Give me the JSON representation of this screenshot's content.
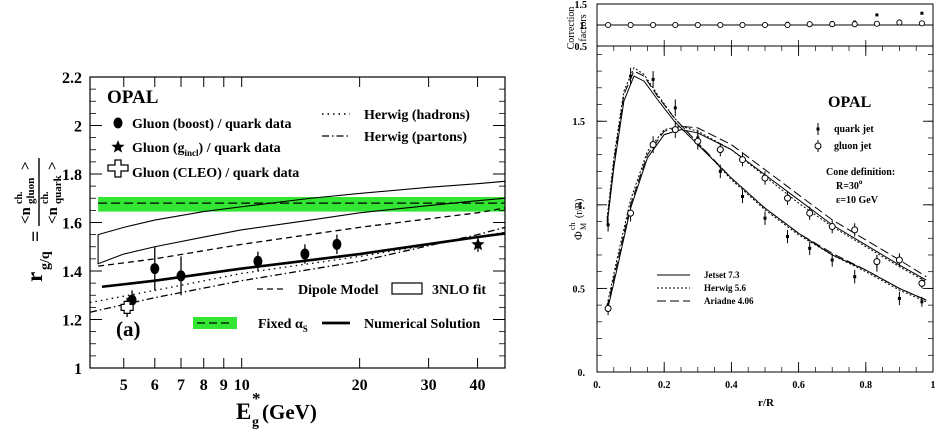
{
  "left_legend": {
    "opal": "OPAL",
    "boost": "Gluon (boost)  / quark data",
    "incl_prefix": "Gluon (g",
    "incl_sub": "incl",
    "incl_suffix": ")  / quark data",
    "cleo": "Gluon (CLEO) / quark data",
    "herwig_hadrons": "Herwig (hadrons)",
    "herwig_partons": "Herwig (partons)",
    "dipole": "Dipole Model",
    "nlo3": "3NLO fit",
    "fixed_prefix": "Fixed α",
    "fixed_sub": "S",
    "numerical": "Numerical Solution",
    "panel": "(a)"
  },
  "left_axis": {
    "y_main": "r",
    "y_sub": "g/q",
    "y_eq": "=",
    "num_main": "<n",
    "num_sup": "ch.",
    "num_sub": "gluon",
    "num_close": ">",
    "den_main": "<n",
    "den_sup": "ch.",
    "den_sub": "quark",
    "den_close": ">",
    "x_main": "E",
    "x_sup": "*",
    "x_sub": "g",
    "x_unit": "(GeV)"
  },
  "right_legend": {
    "opal": "OPAL",
    "quark": "quark jet",
    "gluon": "gluon jet",
    "cone_title": "Cone definition:",
    "cone_r": "R=30",
    "cone_r_sup": "o",
    "cone_e": "ε=10 GeV",
    "jetset": "Jetset 7.3",
    "herwig": "Herwig 5.6",
    "ariadne": "Ariadne 4.06"
  },
  "right_axis": {
    "corr_line1": "Correction",
    "corr_line2": "factors",
    "y_main": "Φ",
    "y_sup": "ch",
    "y_sub": "M",
    "y_rest": "(r/R)",
    "x_label": "r/R"
  },
  "chart_data": [
    {
      "type": "scatter",
      "title": "",
      "xlabel": "E*g (GeV)",
      "ylabel": "r g/q = <n ch. gluon> / <n ch. quark>",
      "x_scale": "log",
      "xlim": [
        4.1,
        47
      ],
      "ylim": [
        1.0,
        2.2
      ],
      "x_ticks": [
        5,
        6,
        7,
        8,
        9,
        10,
        20,
        30,
        40
      ],
      "x_tick_labels": [
        "5",
        "6",
        "7",
        "8",
        "9",
        "10",
        "20",
        "30",
        "40"
      ],
      "y_ticks": [
        1,
        1.2,
        1.4,
        1.6,
        1.8,
        2,
        2.2
      ],
      "y_tick_labels": [
        "1",
        "1.2",
        "1.4",
        "1.6",
        "1.8",
        "2",
        "2.2"
      ],
      "legend_position": "top-left",
      "series": [
        {
          "name": "Gluon (boost)  / quark data",
          "style": "filled-circle",
          "x": [
            5.25,
            6.0,
            7.0,
            11.0,
            14.5,
            17.5
          ],
          "y": [
            1.28,
            1.41,
            1.38,
            1.44,
            1.47,
            1.51
          ],
          "yerr": [
            0.04,
            0.09,
            0.08,
            0.04,
            0.04,
            0.04
          ]
        },
        {
          "name": "Gluon (gincl)  / quark data",
          "style": "star",
          "x": [
            40.1
          ],
          "y": [
            1.509
          ],
          "yerr": [
            0.03
          ]
        },
        {
          "name": "Gluon (CLEO) / quark data",
          "style": "open-cross",
          "x": [
            5.1
          ],
          "y": [
            1.25
          ],
          "yerr": [
            0.04
          ]
        },
        {
          "name": "Herwig (hadrons)",
          "style": "dotted",
          "x": [
            4.1,
            6,
            10,
            20,
            40,
            47
          ],
          "y": [
            1.27,
            1.32,
            1.39,
            1.46,
            1.54,
            1.56
          ]
        },
        {
          "name": "Herwig (partons)",
          "style": "dash-dot",
          "x": [
            4.1,
            6,
            10,
            20,
            40,
            47
          ],
          "y": [
            1.23,
            1.29,
            1.36,
            1.44,
            1.55,
            1.58
          ]
        },
        {
          "name": "Dipole Model",
          "style": "dashed",
          "x": [
            4.3,
            6,
            10,
            20,
            40,
            47
          ],
          "y": [
            1.42,
            1.45,
            1.51,
            1.58,
            1.64,
            1.66
          ]
        },
        {
          "name": "Fixed αS",
          "style": "green-band",
          "x": [
            4.3,
            47
          ],
          "y": [
            1.68,
            1.68
          ],
          "y_low": [
            1.645,
            1.645
          ],
          "y_high": [
            1.705,
            1.705
          ]
        },
        {
          "name": "Numerical Solution",
          "style": "thick-solid",
          "x": [
            4.4,
            6,
            10,
            20,
            40,
            47
          ],
          "y": [
            1.335,
            1.36,
            1.41,
            1.47,
            1.54,
            1.555
          ]
        },
        {
          "name": "3NLO fit",
          "style": "outline-band",
          "x": [
            4.3,
            5,
            6,
            8,
            10,
            15,
            20,
            30,
            40,
            47
          ],
          "y_low": [
            1.43,
            1.47,
            1.5,
            1.54,
            1.57,
            1.61,
            1.64,
            1.67,
            1.69,
            1.7
          ],
          "y_high": [
            1.55,
            1.58,
            1.61,
            1.645,
            1.665,
            1.7,
            1.72,
            1.745,
            1.76,
            1.77
          ]
        }
      ]
    },
    {
      "type": "line",
      "title": "",
      "xlabel": "r/R",
      "ylabel": "Φ ch M (r/R)",
      "xlim": [
        0,
        1.0
      ],
      "ylim": [
        0,
        1.95
      ],
      "x_ticks": [
        0,
        0.2,
        0.4,
        0.6,
        0.8,
        1
      ],
      "x_tick_labels": [
        "0.",
        "0.2",
        "0.4",
        "0.6",
        "0.8",
        "1"
      ],
      "y_ticks": [
        0,
        0.5,
        1,
        1.5
      ],
      "y_tick_labels": [
        "0.",
        "0.5",
        "1.",
        "1.5"
      ],
      "series": [
        {
          "name": "quark jet",
          "style": "points-errorbars",
          "x": [
            0.033,
            0.1,
            0.167,
            0.233,
            0.3,
            0.367,
            0.433,
            0.5,
            0.567,
            0.633,
            0.7,
            0.767,
            0.833,
            0.9,
            0.967
          ],
          "y": [
            0.88,
            1.77,
            1.75,
            1.58,
            1.4,
            1.2,
            1.05,
            0.92,
            0.81,
            0.74,
            0.67,
            0.57,
            0.65,
            0.44,
            0.42
          ],
          "yerr": [
            0.04,
            0.05,
            0.05,
            0.05,
            0.05,
            0.04,
            0.04,
            0.04,
            0.04,
            0.04,
            0.04,
            0.04,
            0.05,
            0.04,
            0.03
          ]
        },
        {
          "name": "gluon jet",
          "style": "open-circles-errorbars",
          "x": [
            0.033,
            0.1,
            0.167,
            0.233,
            0.3,
            0.367,
            0.433,
            0.5,
            0.567,
            0.633,
            0.7,
            0.767,
            0.833,
            0.9,
            0.967
          ],
          "y": [
            0.38,
            0.95,
            1.36,
            1.45,
            1.38,
            1.33,
            1.27,
            1.16,
            1.04,
            0.95,
            0.87,
            0.85,
            0.66,
            0.67,
            0.53
          ],
          "yerr": [
            0.04,
            0.05,
            0.05,
            0.05,
            0.05,
            0.04,
            0.04,
            0.04,
            0.04,
            0.04,
            0.04,
            0.04,
            0.04,
            0.04,
            0.03
          ]
        },
        {
          "name": "Jetset 7.3",
          "style": "solid",
          "x": [
            0.03,
            0.05,
            0.08,
            0.11,
            0.14,
            0.18,
            0.23,
            0.3,
            0.4,
            0.5,
            0.6,
            0.7,
            0.8,
            0.9,
            0.98
          ],
          "y": [
            0.88,
            1.22,
            1.62,
            1.77,
            1.74,
            1.63,
            1.5,
            1.36,
            1.16,
            0.98,
            0.83,
            0.7,
            0.61,
            0.5,
            0.43
          ]
        },
        {
          "name": "Herwig 5.6",
          "style": "dotted",
          "x": [
            0.03,
            0.05,
            0.08,
            0.11,
            0.14,
            0.18,
            0.23,
            0.3,
            0.4,
            0.5,
            0.6,
            0.7,
            0.8,
            0.9,
            0.98
          ],
          "y": [
            0.92,
            1.28,
            1.68,
            1.82,
            1.78,
            1.66,
            1.52,
            1.37,
            1.15,
            0.97,
            0.82,
            0.7,
            0.6,
            0.49,
            0.42
          ]
        },
        {
          "name": "Ariadne 4.06",
          "style": "dashed",
          "x": [
            0.03,
            0.05,
            0.08,
            0.11,
            0.14,
            0.18,
            0.23,
            0.3,
            0.4,
            0.5,
            0.6,
            0.7,
            0.8,
            0.9,
            0.98
          ],
          "y": [
            0.9,
            1.25,
            1.66,
            1.8,
            1.77,
            1.65,
            1.52,
            1.37,
            1.16,
            0.98,
            0.83,
            0.71,
            0.61,
            0.5,
            0.43
          ]
        },
        {
          "name": "Jetset 7.3",
          "style": "solid",
          "jet": "gluon",
          "x": [
            0.03,
            0.06,
            0.1,
            0.15,
            0.2,
            0.25,
            0.3,
            0.4,
            0.5,
            0.6,
            0.7,
            0.8,
            0.9,
            0.98
          ],
          "y": [
            0.36,
            0.62,
            0.98,
            1.28,
            1.42,
            1.45,
            1.43,
            1.33,
            1.18,
            1.03,
            0.88,
            0.76,
            0.64,
            0.55
          ]
        },
        {
          "name": "Herwig 5.6",
          "style": "dotted",
          "jet": "gluon",
          "x": [
            0.03,
            0.06,
            0.1,
            0.15,
            0.2,
            0.25,
            0.3,
            0.4,
            0.5,
            0.6,
            0.7,
            0.8,
            0.9,
            0.98
          ],
          "y": [
            0.4,
            0.68,
            1.03,
            1.32,
            1.45,
            1.47,
            1.44,
            1.33,
            1.17,
            1.01,
            0.87,
            0.75,
            0.63,
            0.54
          ]
        },
        {
          "name": "Ariadne 4.06",
          "style": "dashed",
          "jet": "gluon",
          "x": [
            0.03,
            0.06,
            0.1,
            0.15,
            0.2,
            0.25,
            0.3,
            0.4,
            0.5,
            0.6,
            0.7,
            0.8,
            0.9,
            0.98
          ],
          "y": [
            0.38,
            0.65,
            1.0,
            1.3,
            1.44,
            1.47,
            1.46,
            1.36,
            1.21,
            1.06,
            0.91,
            0.79,
            0.67,
            0.57
          ]
        }
      ]
    },
    {
      "type": "scatter",
      "title": "",
      "xlabel": "",
      "ylabel": "Correction factors",
      "xlim": [
        0,
        1.0
      ],
      "ylim": [
        0.5,
        1.5
      ],
      "y_ticks": [
        0.5,
        1,
        1.5
      ],
      "y_tick_labels": [
        "0.5",
        "1.",
        "1.5"
      ],
      "series": [
        {
          "name": "quark jet",
          "style": "point",
          "x": [
            0.033,
            0.1,
            0.167,
            0.233,
            0.3,
            0.367,
            0.433,
            0.5,
            0.567,
            0.633,
            0.7,
            0.767,
            0.833,
            0.9,
            0.967
          ],
          "y": [
            1.0,
            1.0,
            1.0,
            1.0,
            1.0,
            1.0,
            1.02,
            1.02,
            1.04,
            1.04,
            1.06,
            1.07,
            1.24,
            1.08,
            1.28
          ]
        },
        {
          "name": "gluon jet",
          "style": "open-circle",
          "x": [
            0.033,
            0.1,
            0.167,
            0.233,
            0.3,
            0.367,
            0.433,
            0.5,
            0.567,
            0.633,
            0.7,
            0.767,
            0.833,
            0.9,
            0.967
          ],
          "y": [
            1.0,
            1.0,
            1.0,
            1.0,
            1.0,
            1.0,
            1.0,
            1.0,
            1.0,
            1.02,
            1.02,
            1.02,
            1.03,
            1.06,
            1.04
          ]
        }
      ]
    }
  ]
}
